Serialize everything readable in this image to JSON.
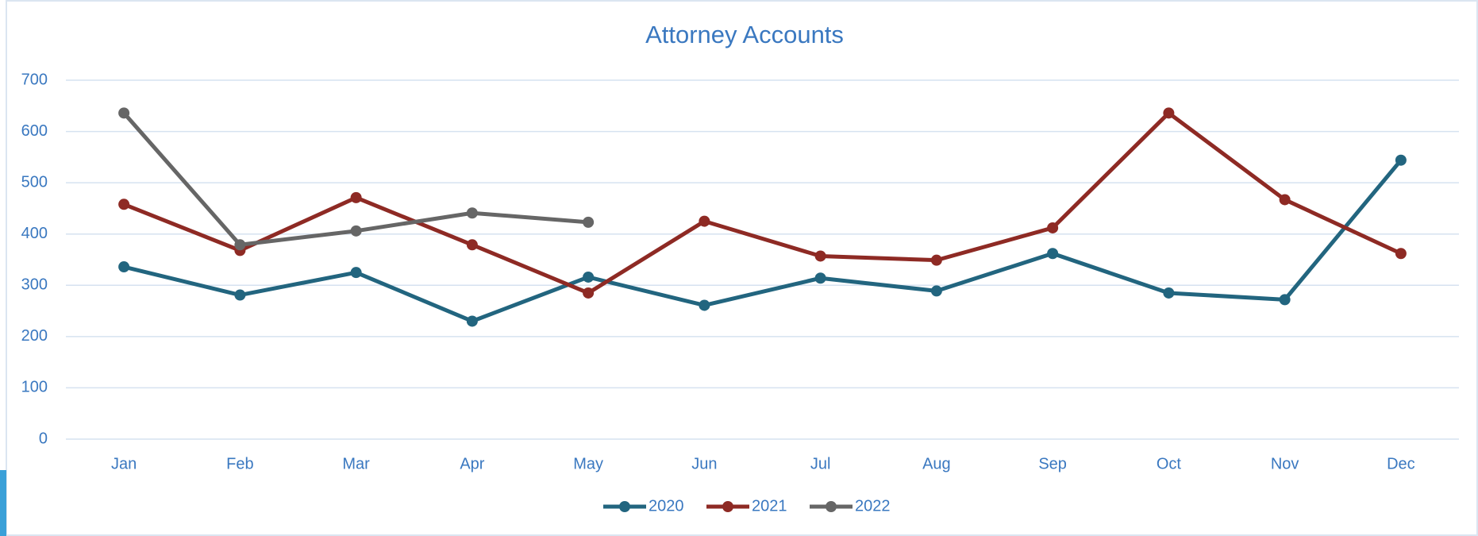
{
  "chart_data": {
    "type": "line",
    "title": "Attorney Accounts",
    "categories": [
      "Jan",
      "Feb",
      "Mar",
      "Apr",
      "May",
      "Jun",
      "Jul",
      "Aug",
      "Sep",
      "Oct",
      "Nov",
      "Dec"
    ],
    "series": [
      {
        "name": "2020",
        "color": "#22657f",
        "values": [
          336,
          281,
          325,
          230,
          316,
          261,
          314,
          289,
          362,
          285,
          272,
          544
        ]
      },
      {
        "name": "2021",
        "color": "#8e2a24",
        "values": [
          458,
          368,
          471,
          379,
          285,
          425,
          357,
          349,
          412,
          636,
          467,
          362
        ]
      },
      {
        "name": "2022",
        "color": "#666666",
        "values": [
          636,
          379,
          406,
          441,
          423,
          null,
          null,
          null,
          null,
          null,
          null,
          null
        ]
      }
    ],
    "ylim": [
      0,
      700
    ],
    "yticks": [
      0,
      100,
      200,
      300,
      400,
      500,
      600,
      700
    ],
    "grid": true,
    "legend": "bottom"
  }
}
